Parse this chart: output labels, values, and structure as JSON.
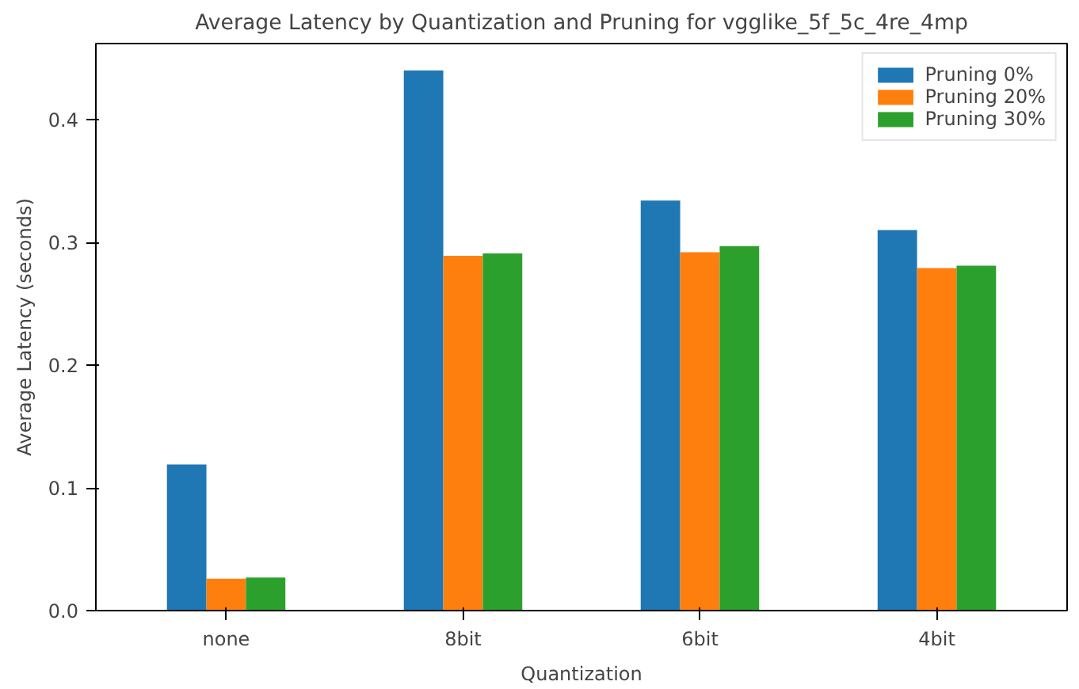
{
  "chart_data": {
    "type": "bar",
    "title": "Average Latency by Quantization and Pruning for vgglike_5f_5c_4re_4mp",
    "xlabel": "Quantization",
    "ylabel": "Average Latency (seconds)",
    "categories": [
      "none",
      "8bit",
      "6bit",
      "4bit"
    ],
    "series": [
      {
        "name": "Pruning 0%",
        "color": "#1f77b4",
        "values": [
          0.119,
          0.44,
          0.334,
          0.31
        ]
      },
      {
        "name": "Pruning 20%",
        "color": "#ff7f0e",
        "values": [
          0.026,
          0.289,
          0.292,
          0.279
        ]
      },
      {
        "name": "Pruning 30%",
        "color": "#2ca02c",
        "values": [
          0.027,
          0.291,
          0.297,
          0.281
        ]
      }
    ],
    "ylim": [
      0,
      0.462
    ],
    "yticks": [
      {
        "value": 0,
        "label": "0.0"
      },
      0.1,
      0.2,
      0.3,
      0.4
    ],
    "grid": false,
    "legend": "top right"
  }
}
